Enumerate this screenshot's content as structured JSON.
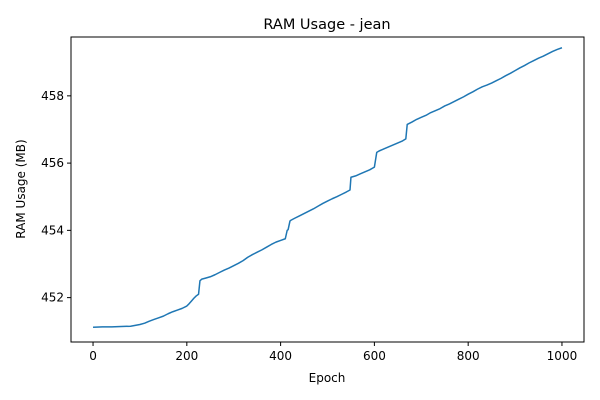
{
  "chart_data": {
    "type": "line",
    "title": "RAM Usage - jean",
    "xlabel": "Epoch",
    "ylabel": "RAM Usage (MB)",
    "xlim": [
      -47,
      1047
    ],
    "ylim": [
      450.68,
      459.75
    ],
    "xticks": [
      0,
      200,
      400,
      600,
      800,
      1000
    ],
    "yticks": [
      452,
      454,
      456,
      458
    ],
    "xtick_labels": [
      "0",
      "200",
      "400",
      "600",
      "800",
      "1000"
    ],
    "ytick_labels": [
      "452",
      "454",
      "456",
      "458"
    ],
    "grid": false,
    "series": [
      {
        "color": "#1f77b4",
        "x": [
          0,
          20,
          40,
          60,
          80,
          100,
          110,
          120,
          130,
          140,
          150,
          160,
          170,
          180,
          190,
          200,
          205,
          210,
          215,
          220,
          225,
          228,
          232,
          240,
          250,
          260,
          270,
          280,
          290,
          300,
          310,
          320,
          330,
          340,
          350,
          360,
          370,
          380,
          390,
          400,
          410,
          414,
          416,
          420,
          422,
          430,
          440,
          450,
          460,
          470,
          480,
          490,
          500,
          510,
          520,
          530,
          540,
          548,
          550,
          560,
          570,
          580,
          590,
          600,
          605,
          610,
          620,
          630,
          640,
          650,
          660,
          667,
          670,
          680,
          690,
          700,
          710,
          720,
          730,
          740,
          750,
          760,
          770,
          780,
          790,
          800,
          810,
          820,
          830,
          840,
          850,
          860,
          870,
          880,
          890,
          900,
          910,
          920,
          930,
          940,
          950,
          960,
          970,
          980,
          990,
          1000
        ],
        "y": [
          451.12,
          451.13,
          451.13,
          451.14,
          451.15,
          451.2,
          451.24,
          451.3,
          451.35,
          451.4,
          451.45,
          451.52,
          451.58,
          451.63,
          451.68,
          451.75,
          451.82,
          451.9,
          451.98,
          452.05,
          452.1,
          452.5,
          452.55,
          452.58,
          452.62,
          452.68,
          452.75,
          452.82,
          452.88,
          452.95,
          453.02,
          453.1,
          453.2,
          453.28,
          453.35,
          453.42,
          453.5,
          453.58,
          453.65,
          453.7,
          453.75,
          454.0,
          454.02,
          454.28,
          454.3,
          454.36,
          454.43,
          454.5,
          454.57,
          454.64,
          454.72,
          454.8,
          454.87,
          454.94,
          455.0,
          455.07,
          455.14,
          455.2,
          455.58,
          455.62,
          455.68,
          455.74,
          455.8,
          455.88,
          456.32,
          456.36,
          456.42,
          456.48,
          456.54,
          456.6,
          456.66,
          456.72,
          457.15,
          457.22,
          457.3,
          457.36,
          457.42,
          457.5,
          457.56,
          457.62,
          457.7,
          457.76,
          457.83,
          457.9,
          457.97,
          458.05,
          458.12,
          458.2,
          458.27,
          458.32,
          458.38,
          458.45,
          458.52,
          458.6,
          458.67,
          458.75,
          458.83,
          458.9,
          458.98,
          459.05,
          459.12,
          459.18,
          459.25,
          459.32,
          459.38,
          459.43
        ]
      }
    ]
  }
}
